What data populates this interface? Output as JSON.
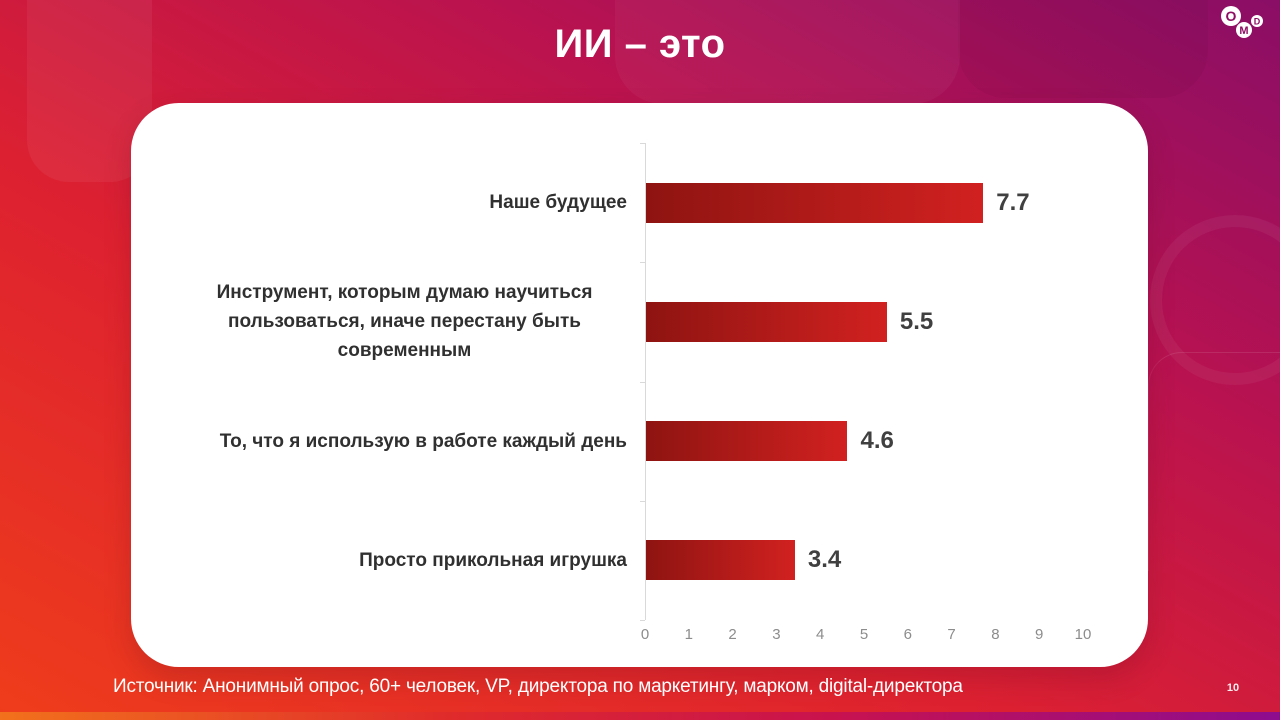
{
  "slide": {
    "title": "ИИ – это",
    "source": "Источник: Анонимный опрос, 60+ человек, VP, директора по маркетингу, марком, digital-директора",
    "page_number": "10",
    "logo": {
      "label": "OMD",
      "o": "O",
      "m": "M",
      "d": "D"
    },
    "colors": {
      "background_top_right": "#8a0e66",
      "background_bottom_left": "#ef3d1b",
      "card": "#ffffff",
      "bar_gradient_start": "#8e1411",
      "bar_gradient_end": "#d12120",
      "value_label": "#404040",
      "category_label": "#303030",
      "axis_label": "#8c8c8c",
      "axis_line": "#d9d9d9"
    }
  },
  "chart_data": {
    "type": "bar",
    "orientation": "horizontal",
    "title": "ИИ – это",
    "categories": [
      "Наше будущее",
      "Инструмент, которым думаю научиться пользоваться, иначе перестану быть современным",
      "То, что я использую в работе каждый день",
      "Просто прикольная игрушка"
    ],
    "values": [
      7.7,
      5.5,
      4.6,
      3.4
    ],
    "value_labels": [
      "7.7",
      "5.5",
      "4.6",
      "3.4"
    ],
    "xlim": [
      0,
      10
    ],
    "x_ticks": [
      "0",
      "1",
      "2",
      "3",
      "4",
      "5",
      "6",
      "7",
      "8",
      "9",
      "10"
    ],
    "xlabel": "",
    "ylabel": "",
    "grid": false,
    "legend": false
  }
}
